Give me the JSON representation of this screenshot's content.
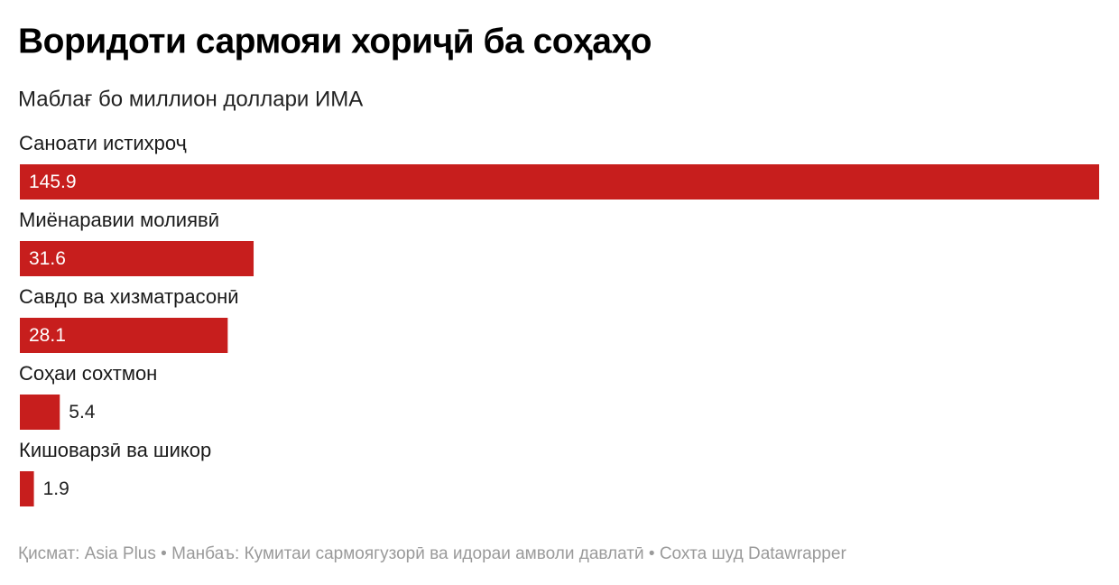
{
  "chart_data": {
    "type": "bar",
    "orientation": "horizontal",
    "title": "Воридоти сармояи хориҷӣ ба соҳаҳо",
    "subtitle": "Маблағ бо миллион доллари ИМА",
    "categories": [
      "Саноати истихроҷ",
      "Миёнаравии молиявӣ",
      "Савдо ва хизматрасонӣ",
      "Соҳаи сохтмон",
      "Кишоварзӣ ва шикор"
    ],
    "values": [
      145.9,
      31.6,
      28.1,
      5.4,
      1.9
    ],
    "color": "#c71e1d",
    "footer": "Қисмат: Asia Plus • Манбаъ: Кумитаи сармоягузорӣ ва идораи амволи давлатӣ • Сохта шуд Datawrapper"
  }
}
